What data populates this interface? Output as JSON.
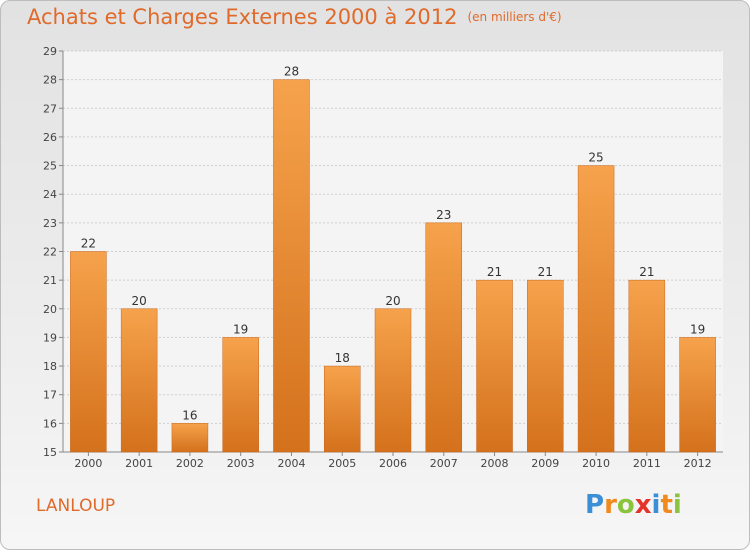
{
  "header": {
    "title": "Achats et Charges Externes 2000 à 2012",
    "subtitle": "(en milliers d'€)"
  },
  "commune": "LANLOUP",
  "logo": {
    "letters": [
      "P",
      "r",
      "o",
      "x",
      "i",
      "t",
      "i"
    ],
    "colors": [
      "#3a8fd6",
      "#f08a1f",
      "#8ac33c",
      "#e5332a",
      "#3a8fd6",
      "#f08a1f",
      "#8ac33c"
    ]
  },
  "chart_data": {
    "type": "bar",
    "categories": [
      "2000",
      "2001",
      "2002",
      "2003",
      "2004",
      "2005",
      "2006",
      "2007",
      "2008",
      "2009",
      "2010",
      "2011",
      "2012"
    ],
    "values": [
      22,
      20,
      16,
      19,
      28,
      18,
      20,
      23,
      21,
      21,
      25,
      21,
      19
    ],
    "title": "Achats et Charges Externes 2000 à 2012",
    "xlabel": "",
    "ylabel": "",
    "ylim": [
      15,
      29
    ],
    "yticks": [
      15,
      16,
      17,
      18,
      19,
      20,
      21,
      22,
      23,
      24,
      25,
      26,
      27,
      28,
      29
    ],
    "grid": true,
    "data_labels": true,
    "bar_color": "#f0913a",
    "bar_color_dark": "#d46c1a"
  }
}
